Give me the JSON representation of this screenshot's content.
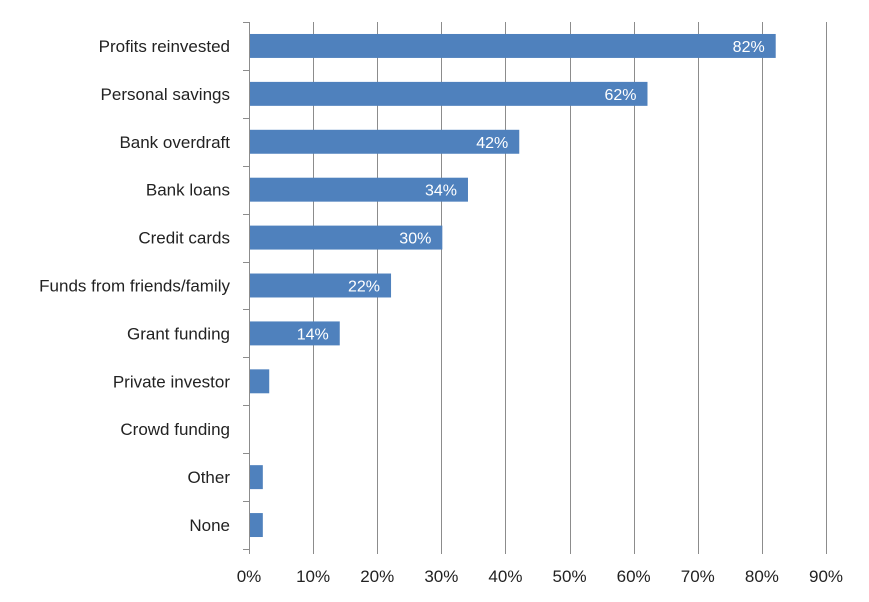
{
  "chart_data": {
    "type": "bar",
    "orientation": "horizontal",
    "categories": [
      "Profits reinvested",
      "Personal savings",
      "Bank overdraft",
      "Bank loans",
      "Credit cards",
      "Funds from friends/family",
      "Grant funding",
      "Private investor",
      "Crowd funding",
      "Other",
      "None"
    ],
    "values": [
      82,
      62,
      42,
      34,
      30,
      22,
      14,
      3,
      0,
      2,
      2
    ],
    "data_labels": [
      "82%",
      "62%",
      "42%",
      "34%",
      "30%",
      "22%",
      "14%",
      "",
      "",
      "",
      ""
    ],
    "xlim": [
      0,
      90
    ],
    "x_ticks": [
      0,
      10,
      20,
      30,
      40,
      50,
      60,
      70,
      80,
      90
    ],
    "x_tick_labels": [
      "0%",
      "10%",
      "20%",
      "30%",
      "40%",
      "50%",
      "60%",
      "70%",
      "80%",
      "90%"
    ],
    "title": "",
    "xlabel": "",
    "ylabel": "",
    "grid": "vertical",
    "legend": "none",
    "bar_color": "#4f81bd",
    "data_label_color": "#ffffff"
  }
}
